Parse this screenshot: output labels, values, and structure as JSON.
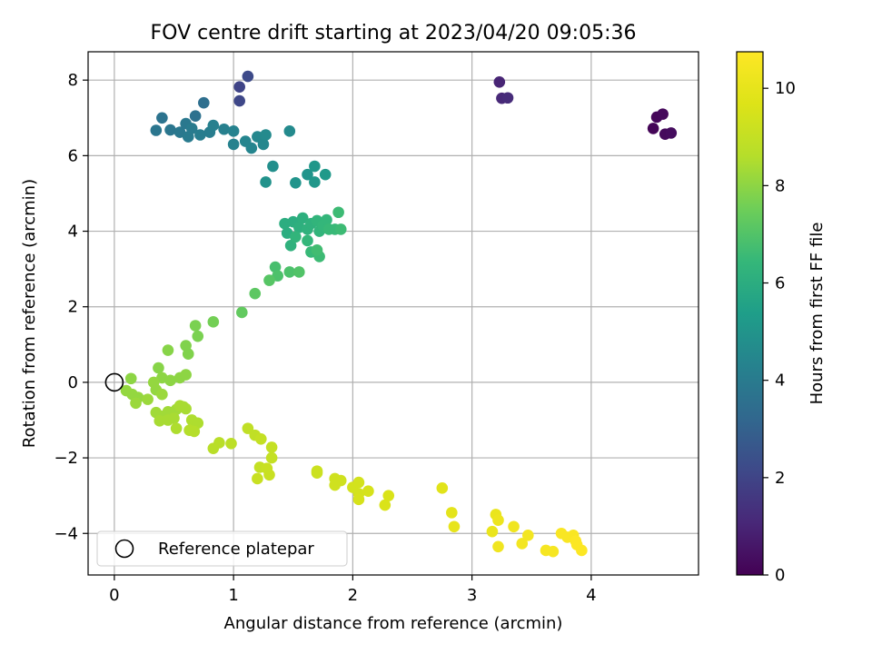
{
  "chart_data": {
    "type": "scatter",
    "title": "FOV centre drift starting at 2023/04/20 09:05:36",
    "xlabel": "Angular distance from reference (arcmin)",
    "ylabel": "Rotation from reference (arcmin)",
    "xlim": [
      -0.22,
      4.9
    ],
    "ylim": [
      -5.1,
      8.75
    ],
    "xticks": [
      "0",
      "1",
      "2",
      "3",
      "4"
    ],
    "yticks": [
      "−4",
      "−2",
      "0",
      "2",
      "4",
      "6",
      "8"
    ],
    "grid": true,
    "colormap": "viridis",
    "colorbar": {
      "label": "Hours from first FF file",
      "range": [
        0,
        10.75
      ],
      "ticks": [
        "0",
        "2",
        "4",
        "6",
        "8",
        "10"
      ]
    },
    "legend": {
      "position": "lower-left",
      "entries": [
        {
          "label": "Reference platepar",
          "marker": "open-circle"
        }
      ]
    },
    "reference_point": {
      "x": 0,
      "y": 0
    },
    "points": [
      {
        "x": 4.52,
        "y": 6.72,
        "h": 0.1
      },
      {
        "x": 4.55,
        "y": 7.02,
        "h": 0.15
      },
      {
        "x": 4.6,
        "y": 7.1,
        "h": 0.2
      },
      {
        "x": 4.62,
        "y": 6.57,
        "h": 0.25
      },
      {
        "x": 4.67,
        "y": 6.6,
        "h": 0.3
      },
      {
        "x": 3.23,
        "y": 7.95,
        "h": 1.0
      },
      {
        "x": 3.25,
        "y": 7.52,
        "h": 1.1
      },
      {
        "x": 3.3,
        "y": 7.53,
        "h": 1.2
      },
      {
        "x": 1.05,
        "y": 7.82,
        "h": 2.0
      },
      {
        "x": 1.05,
        "y": 7.45,
        "h": 2.1
      },
      {
        "x": 1.12,
        "y": 8.1,
        "h": 2.2
      },
      {
        "x": 0.75,
        "y": 7.4,
        "h": 3.5
      },
      {
        "x": 0.68,
        "y": 7.05,
        "h": 3.6
      },
      {
        "x": 0.4,
        "y": 7.0,
        "h": 3.7
      },
      {
        "x": 0.35,
        "y": 6.67,
        "h": 3.8
      },
      {
        "x": 0.47,
        "y": 6.68,
        "h": 3.8
      },
      {
        "x": 0.55,
        "y": 6.62,
        "h": 3.9
      },
      {
        "x": 0.6,
        "y": 6.85,
        "h": 3.9
      },
      {
        "x": 0.62,
        "y": 6.5,
        "h": 4.0
      },
      {
        "x": 0.65,
        "y": 6.72,
        "h": 4.0
      },
      {
        "x": 0.72,
        "y": 6.55,
        "h": 4.1
      },
      {
        "x": 0.8,
        "y": 6.62,
        "h": 4.1
      },
      {
        "x": 0.83,
        "y": 6.8,
        "h": 4.2
      },
      {
        "x": 0.92,
        "y": 6.7,
        "h": 4.2
      },
      {
        "x": 1.0,
        "y": 6.65,
        "h": 4.3
      },
      {
        "x": 1.0,
        "y": 6.3,
        "h": 4.3
      },
      {
        "x": 1.1,
        "y": 6.38,
        "h": 4.4
      },
      {
        "x": 1.15,
        "y": 6.2,
        "h": 4.4
      },
      {
        "x": 1.2,
        "y": 6.5,
        "h": 4.5
      },
      {
        "x": 1.25,
        "y": 6.3,
        "h": 4.5
      },
      {
        "x": 1.27,
        "y": 6.55,
        "h": 4.6
      },
      {
        "x": 1.47,
        "y": 6.65,
        "h": 4.6
      },
      {
        "x": 1.33,
        "y": 5.72,
        "h": 4.8
      },
      {
        "x": 1.27,
        "y": 5.3,
        "h": 4.9
      },
      {
        "x": 1.52,
        "y": 5.28,
        "h": 5.0
      },
      {
        "x": 1.62,
        "y": 5.5,
        "h": 5.0
      },
      {
        "x": 1.68,
        "y": 5.72,
        "h": 5.1
      },
      {
        "x": 1.68,
        "y": 5.3,
        "h": 5.1
      },
      {
        "x": 1.77,
        "y": 5.5,
        "h": 5.2
      },
      {
        "x": 1.43,
        "y": 4.2,
        "h": 6.0
      },
      {
        "x": 1.5,
        "y": 4.25,
        "h": 6.0
      },
      {
        "x": 1.55,
        "y": 4.1,
        "h": 6.1
      },
      {
        "x": 1.58,
        "y": 4.35,
        "h": 6.1
      },
      {
        "x": 1.62,
        "y": 4.05,
        "h": 6.2
      },
      {
        "x": 1.65,
        "y": 4.2,
        "h": 6.2
      },
      {
        "x": 1.7,
        "y": 4.28,
        "h": 6.3
      },
      {
        "x": 1.72,
        "y": 4.0,
        "h": 6.3
      },
      {
        "x": 1.75,
        "y": 4.15,
        "h": 6.4
      },
      {
        "x": 1.78,
        "y": 4.3,
        "h": 6.4
      },
      {
        "x": 1.8,
        "y": 4.05,
        "h": 6.5
      },
      {
        "x": 1.85,
        "y": 4.05,
        "h": 6.5
      },
      {
        "x": 1.9,
        "y": 4.05,
        "h": 6.6
      },
      {
        "x": 1.88,
        "y": 4.5,
        "h": 6.6
      },
      {
        "x": 1.45,
        "y": 3.95,
        "h": 6.0
      },
      {
        "x": 1.48,
        "y": 3.62,
        "h": 6.2
      },
      {
        "x": 1.52,
        "y": 3.85,
        "h": 6.3
      },
      {
        "x": 1.65,
        "y": 3.45,
        "h": 6.5
      },
      {
        "x": 1.72,
        "y": 3.33,
        "h": 6.6
      },
      {
        "x": 1.62,
        "y": 3.75,
        "h": 6.4
      },
      {
        "x": 1.7,
        "y": 3.5,
        "h": 6.7
      },
      {
        "x": 1.35,
        "y": 3.05,
        "h": 6.8
      },
      {
        "x": 1.37,
        "y": 2.82,
        "h": 6.9
      },
      {
        "x": 1.47,
        "y": 2.92,
        "h": 6.9
      },
      {
        "x": 1.55,
        "y": 2.92,
        "h": 7.0
      },
      {
        "x": 1.3,
        "y": 2.7,
        "h": 7.1
      },
      {
        "x": 1.18,
        "y": 2.35,
        "h": 7.2
      },
      {
        "x": 1.07,
        "y": 1.85,
        "h": 7.3
      },
      {
        "x": 0.83,
        "y": 1.6,
        "h": 7.6
      },
      {
        "x": 0.68,
        "y": 1.5,
        "h": 7.7
      },
      {
        "x": 0.7,
        "y": 1.22,
        "h": 7.7
      },
      {
        "x": 0.6,
        "y": 0.97,
        "h": 7.8
      },
      {
        "x": 0.62,
        "y": 0.75,
        "h": 7.8
      },
      {
        "x": 0.45,
        "y": 0.85,
        "h": 7.9
      },
      {
        "x": 0.37,
        "y": 0.38,
        "h": 7.9
      },
      {
        "x": 0.4,
        "y": 0.12,
        "h": 8.0
      },
      {
        "x": 0.47,
        "y": 0.05,
        "h": 8.0
      },
      {
        "x": 0.55,
        "y": 0.12,
        "h": 8.0
      },
      {
        "x": 0.6,
        "y": 0.2,
        "h": 8.0
      },
      {
        "x": 0.14,
        "y": 0.1,
        "h": 8.0
      },
      {
        "x": 0.1,
        "y": -0.22,
        "h": 8.1
      },
      {
        "x": 0.15,
        "y": -0.32,
        "h": 8.1
      },
      {
        "x": 0.2,
        "y": -0.4,
        "h": 8.1
      },
      {
        "x": 0.18,
        "y": -0.55,
        "h": 8.2
      },
      {
        "x": 0.28,
        "y": -0.45,
        "h": 8.2
      },
      {
        "x": 0.33,
        "y": 0.0,
        "h": 8.1
      },
      {
        "x": 0.35,
        "y": -0.2,
        "h": 8.1
      },
      {
        "x": 0.4,
        "y": -0.32,
        "h": 8.2
      },
      {
        "x": 0.35,
        "y": -0.8,
        "h": 8.3
      },
      {
        "x": 0.4,
        "y": -0.9,
        "h": 8.3
      },
      {
        "x": 0.45,
        "y": -0.78,
        "h": 8.3
      },
      {
        "x": 0.52,
        "y": -0.72,
        "h": 8.3
      },
      {
        "x": 0.55,
        "y": -0.62,
        "h": 8.4
      },
      {
        "x": 0.58,
        "y": -0.65,
        "h": 8.4
      },
      {
        "x": 0.6,
        "y": -0.7,
        "h": 8.4
      },
      {
        "x": 0.38,
        "y": -1.02,
        "h": 8.4
      },
      {
        "x": 0.45,
        "y": -1.0,
        "h": 8.4
      },
      {
        "x": 0.5,
        "y": -0.95,
        "h": 8.4
      },
      {
        "x": 0.52,
        "y": -1.22,
        "h": 8.5
      },
      {
        "x": 0.65,
        "y": -1.0,
        "h": 8.5
      },
      {
        "x": 0.7,
        "y": -1.08,
        "h": 8.5
      },
      {
        "x": 0.63,
        "y": -1.27,
        "h": 8.6
      },
      {
        "x": 0.67,
        "y": -1.3,
        "h": 8.6
      },
      {
        "x": 0.83,
        "y": -1.75,
        "h": 8.7
      },
      {
        "x": 0.88,
        "y": -1.6,
        "h": 8.7
      },
      {
        "x": 0.98,
        "y": -1.62,
        "h": 8.8
      },
      {
        "x": 1.12,
        "y": -1.22,
        "h": 8.9
      },
      {
        "x": 1.18,
        "y": -1.4,
        "h": 8.9
      },
      {
        "x": 1.23,
        "y": -1.5,
        "h": 9.0
      },
      {
        "x": 1.32,
        "y": -1.72,
        "h": 9.0
      },
      {
        "x": 1.32,
        "y": -2.0,
        "h": 9.0
      },
      {
        "x": 1.22,
        "y": -2.25,
        "h": 9.0
      },
      {
        "x": 1.28,
        "y": -2.28,
        "h": 9.1
      },
      {
        "x": 1.2,
        "y": -2.55,
        "h": 9.1
      },
      {
        "x": 1.3,
        "y": -2.45,
        "h": 9.1
      },
      {
        "x": 1.7,
        "y": -2.35,
        "h": 9.2
      },
      {
        "x": 1.7,
        "y": -2.4,
        "h": 9.2
      },
      {
        "x": 1.85,
        "y": -2.55,
        "h": 9.3
      },
      {
        "x": 1.9,
        "y": -2.6,
        "h": 9.3
      },
      {
        "x": 1.85,
        "y": -2.72,
        "h": 9.3
      },
      {
        "x": 2.0,
        "y": -2.78,
        "h": 9.4
      },
      {
        "x": 2.05,
        "y": -2.65,
        "h": 9.4
      },
      {
        "x": 2.05,
        "y": -2.95,
        "h": 9.4
      },
      {
        "x": 2.05,
        "y": -3.1,
        "h": 9.5
      },
      {
        "x": 2.13,
        "y": -2.88,
        "h": 9.5
      },
      {
        "x": 2.27,
        "y": -3.25,
        "h": 9.6
      },
      {
        "x": 2.3,
        "y": -3.0,
        "h": 9.6
      },
      {
        "x": 2.75,
        "y": -2.8,
        "h": 9.8
      },
      {
        "x": 2.83,
        "y": -3.45,
        "h": 9.9
      },
      {
        "x": 2.85,
        "y": -3.82,
        "h": 10.0
      },
      {
        "x": 3.17,
        "y": -3.95,
        "h": 10.1
      },
      {
        "x": 3.2,
        "y": -3.5,
        "h": 10.1
      },
      {
        "x": 3.22,
        "y": -3.65,
        "h": 10.2
      },
      {
        "x": 3.22,
        "y": -4.35,
        "h": 10.3
      },
      {
        "x": 3.35,
        "y": -3.82,
        "h": 10.3
      },
      {
        "x": 3.42,
        "y": -4.27,
        "h": 10.4
      },
      {
        "x": 3.47,
        "y": -4.05,
        "h": 10.4
      },
      {
        "x": 3.62,
        "y": -4.45,
        "h": 10.5
      },
      {
        "x": 3.68,
        "y": -4.48,
        "h": 10.5
      },
      {
        "x": 3.75,
        "y": -4.0,
        "h": 10.6
      },
      {
        "x": 3.8,
        "y": -4.1,
        "h": 10.6
      },
      {
        "x": 3.85,
        "y": -4.05,
        "h": 10.6
      },
      {
        "x": 3.87,
        "y": -4.2,
        "h": 10.7
      },
      {
        "x": 3.88,
        "y": -4.3,
        "h": 10.7
      },
      {
        "x": 3.92,
        "y": -4.45,
        "h": 10.7
      }
    ]
  }
}
